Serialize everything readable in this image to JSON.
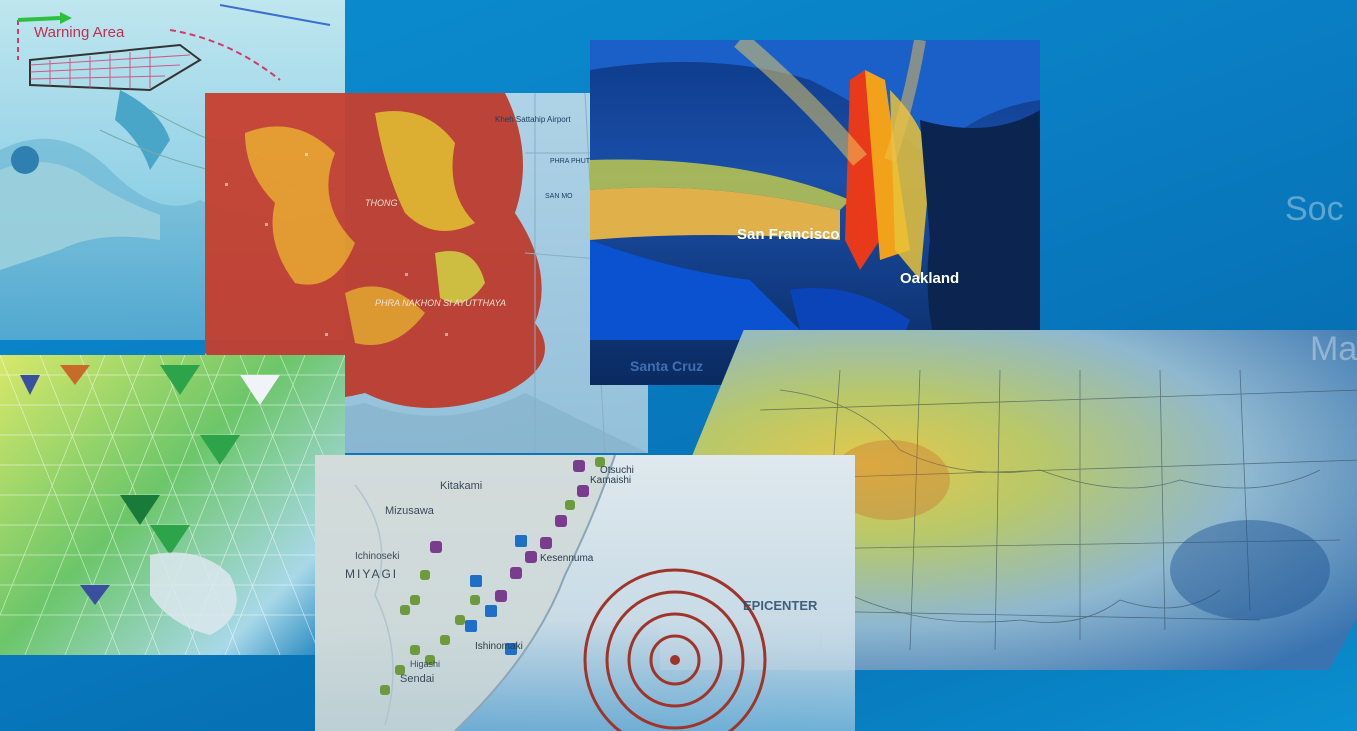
{
  "maps": {
    "warning": {
      "label": "Warning Area"
    },
    "flood": {
      "labels": [
        "PHRA NAKHON SI AYUTTHAYA",
        "THONG",
        "Kheh Sattahip Airport",
        "PHRA PHUTTHABAT",
        "SAN MO"
      ]
    },
    "tsunami": {
      "labels": [
        "San Francisco",
        "Oakland",
        "Santa Cruz"
      ]
    },
    "japan": {
      "labels": [
        "Kitakami",
        "Mizusawa",
        "Ichinoseki",
        "MIYAGI",
        "Kesennuma",
        "Kamaishi",
        "Otsuchi",
        "Sendai",
        "Ishinomaki",
        "Higashi"
      ]
    },
    "usa": {
      "epicenter_label": "EPICENTER"
    }
  },
  "side_text": [
    "Soc",
    "Ma"
  ],
  "colors": {
    "background": "#0a7ec4",
    "flood_red": "#c8301c",
    "flood_orange": "#e89a2a",
    "mesh_green": "#3bb54a",
    "marker_purple": "#7a3c8c",
    "marker_green": "#6c9a3c",
    "epicenter_ring": "#a0342a"
  }
}
